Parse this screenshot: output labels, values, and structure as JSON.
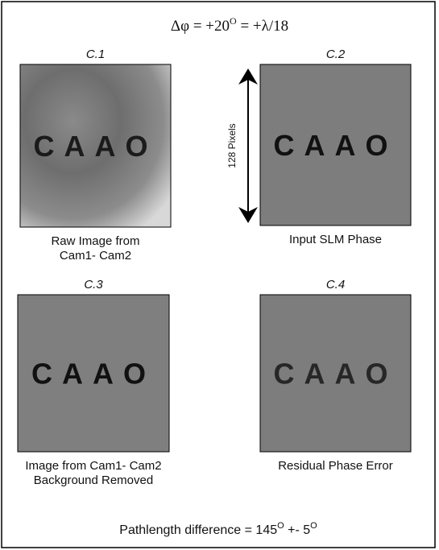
{
  "header": {
    "title": {
      "prefix": "Δφ = +20",
      "sup": "O",
      "suffix": " = +λ/18"
    }
  },
  "scale_label": "128 Pixels",
  "panels": [
    {
      "label": "C.1",
      "image_text": "CAAO",
      "caption": [
        "Raw Image from",
        "Cam1- Cam2"
      ]
    },
    {
      "label": "C.2",
      "image_text": "CAAO",
      "caption": [
        "Input SLM Phase"
      ]
    },
    {
      "label": "C.3",
      "image_text": "CAAO",
      "caption": [
        "Image from Cam1- Cam2",
        "Background Removed"
      ]
    },
    {
      "label": "C.4",
      "image_text": "CAAO",
      "caption": [
        "Residual Phase Error"
      ]
    }
  ],
  "footer": {
    "prefix": "Pathlength difference = 145",
    "sup1": "O",
    "middle": " +- 5",
    "sup2": "O"
  }
}
